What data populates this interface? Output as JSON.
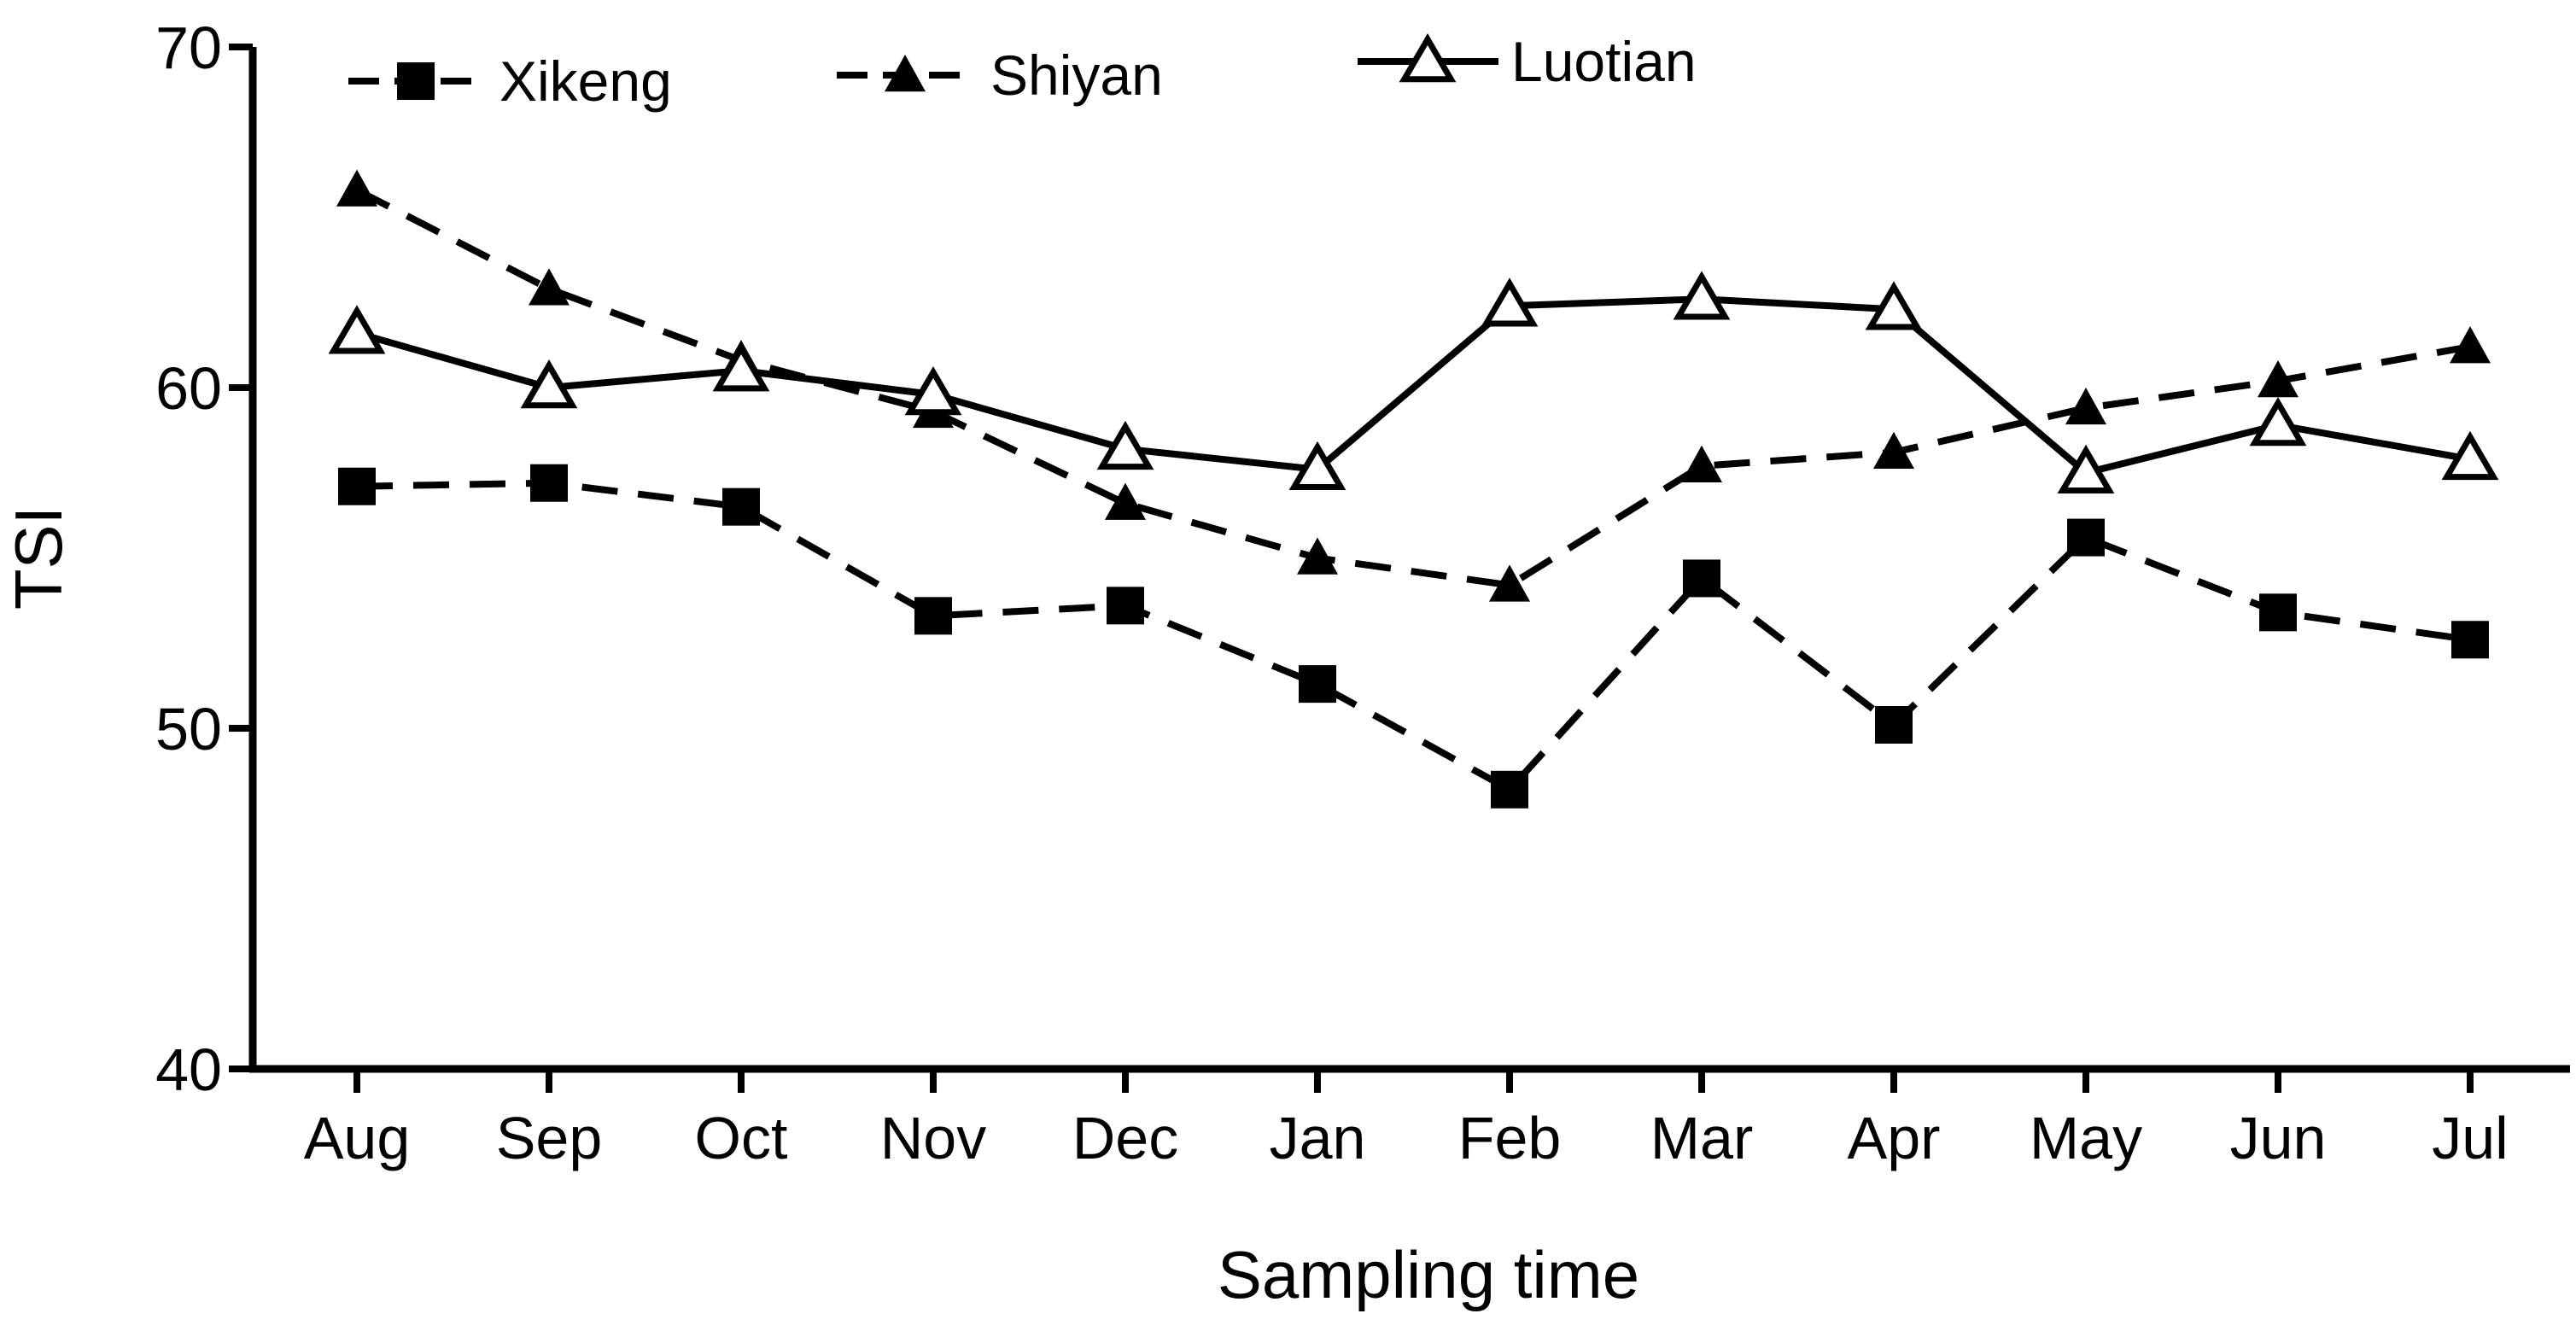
{
  "chart_data": {
    "type": "line",
    "title": "",
    "xlabel": "Sampling time",
    "ylabel": "TSI",
    "categories": [
      "Aug",
      "Sep",
      "Oct",
      "Nov",
      "Dec",
      "Jan",
      "Feb",
      "Mar",
      "Apr",
      "May",
      "Jun",
      "Jul"
    ],
    "ylim": [
      40,
      70
    ],
    "yticks": [
      "40",
      "50",
      "60",
      "70"
    ],
    "grid": false,
    "legend_position": "top-left",
    "series": [
      {
        "name": "Xikeng",
        "marker": "filled-square",
        "line_style": "dashed",
        "color": "#000000",
        "values": [
          57.1,
          57.2,
          56.5,
          53.3,
          53.6,
          51.3,
          48.2,
          54.4,
          50.1,
          55.6,
          53.4,
          52.6
        ]
      },
      {
        "name": "Shiyan",
        "marker": "filled-triangle",
        "line_style": "dashed",
        "color": "#000000",
        "values": [
          65.8,
          62.9,
          60.8,
          59.3,
          56.6,
          55.0,
          54.2,
          57.7,
          58.1,
          59.4,
          60.2,
          61.2
        ]
      },
      {
        "name": "Luotian",
        "marker": "open-triangle",
        "line_style": "solid",
        "color": "#000000",
        "values": [
          61.6,
          60.0,
          60.5,
          59.8,
          58.2,
          57.6,
          62.4,
          62.6,
          62.3,
          57.5,
          58.9,
          57.9
        ]
      }
    ]
  }
}
